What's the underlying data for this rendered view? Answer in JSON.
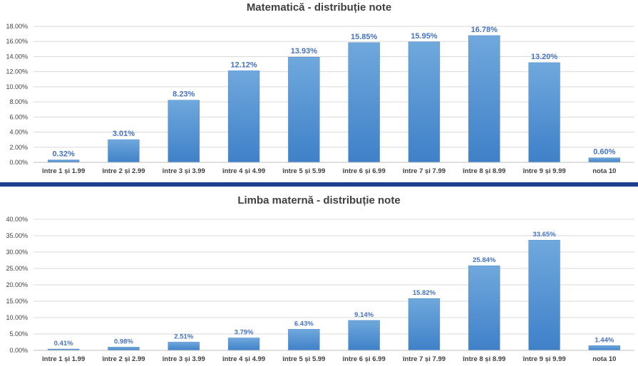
{
  "chart_data": [
    {
      "type": "bar",
      "title": "Matematică - distribuție note",
      "categories": [
        "între 1 și 1.99",
        "între 2 și 2.99",
        "între 3 și 3.99",
        "între 4 și 4.99",
        "între 5 și 5.99",
        "între 6 și 6.99",
        "între 7 și 7.99",
        "între 8 și 8.99",
        "între 9 și 9.99",
        "nota 10"
      ],
      "values": [
        0.32,
        3.01,
        8.23,
        12.12,
        13.93,
        15.85,
        15.95,
        16.78,
        13.2,
        0.6
      ],
      "data_labels": [
        "0.32%",
        "3.01%",
        "8.23%",
        "12.12%",
        "13.93%",
        "15.85%",
        "15.95%",
        "16.78%",
        "13.20%",
        "0.60%"
      ],
      "ylim": [
        0,
        18
      ],
      "yticks": [
        0,
        2,
        4,
        6,
        8,
        10,
        12,
        14,
        16,
        18
      ],
      "ytick_labels": [
        "0.00%",
        "2.00%",
        "4.00%",
        "6.00%",
        "8.00%",
        "10.00%",
        "12.00%",
        "14.00%",
        "16.00%",
        "18.00%"
      ],
      "grid": true,
      "bar_color": "#5b9bd5",
      "label_color": "#4472c4"
    },
    {
      "type": "bar",
      "title": "Limba maternă - distribuție note",
      "categories": [
        "între 1 și 1.99",
        "între 2 și 2.99",
        "între 3 și 3.99",
        "între 4 și 4.99",
        "între 5 și 5.99",
        "între 6 și 6.99",
        "între 7 și 7.99",
        "între 8 și 8.99",
        "între 9 și 9.99",
        "nota 10"
      ],
      "values": [
        0.41,
        0.98,
        2.51,
        3.79,
        6.43,
        9.14,
        15.82,
        25.84,
        33.65,
        1.44
      ],
      "data_labels": [
        "0.41%",
        "0.98%",
        "2.51%",
        "3.79%",
        "6.43%",
        "9.14%",
        "15.82%",
        "25.84%",
        "33.65%",
        "1.44%"
      ],
      "ylim": [
        0,
        40
      ],
      "yticks": [
        0,
        5,
        10,
        15,
        20,
        25,
        30,
        35,
        40
      ],
      "ytick_labels": [
        "0.00%",
        "5.00%",
        "10.00%",
        "15.00%",
        "20.00%",
        "25.00%",
        "30.00%",
        "35.00%",
        "40.00%"
      ],
      "grid": true,
      "bar_color": "#5b9bd5",
      "label_color": "#4472c4"
    }
  ]
}
